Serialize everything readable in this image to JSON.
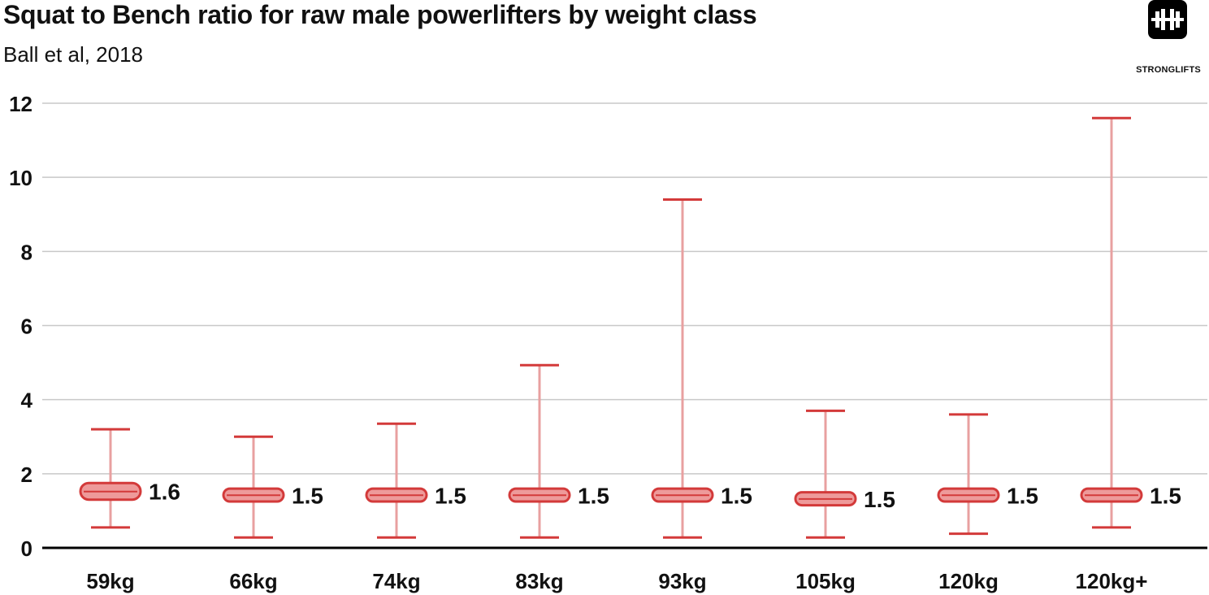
{
  "header": {
    "title": "Squat to Bench ratio for raw male powerlifters by weight class",
    "subtitle": "Ball et al, 2018"
  },
  "brand": {
    "name": "STRONGLIFTS",
    "icon": "barbell-icon"
  },
  "colors": {
    "whisker": "#e8a0a0",
    "cap": "#d33a3a",
    "box_fill": "#ee9a9a",
    "box_stroke": "#d33a3a",
    "grid": "#c8c8c8",
    "axis": "#000000"
  },
  "chart_data": {
    "type": "boxplot",
    "title": "Squat to Bench ratio for raw male powerlifters by weight class",
    "subtitle": "Ball et al, 2018",
    "xlabel": "",
    "ylabel": "",
    "ylim": [
      0,
      12
    ],
    "yticks": [
      0,
      2,
      4,
      6,
      8,
      10,
      12
    ],
    "grid": true,
    "categories": [
      "59kg",
      "66kg",
      "74kg",
      "83kg",
      "93kg",
      "105kg",
      "120kg",
      "120kg+"
    ],
    "min": [
      0.55,
      0.28,
      0.28,
      0.28,
      0.28,
      0.28,
      0.38,
      0.55
    ],
    "max": [
      3.2,
      3.0,
      3.35,
      4.93,
      9.4,
      3.7,
      3.6,
      11.6
    ],
    "q1": [
      1.3,
      1.25,
      1.25,
      1.25,
      1.25,
      1.15,
      1.25,
      1.25
    ],
    "q3": [
      1.75,
      1.6,
      1.6,
      1.6,
      1.6,
      1.5,
      1.6,
      1.6
    ],
    "median": [
      1.52,
      1.42,
      1.42,
      1.42,
      1.42,
      1.32,
      1.42,
      1.42
    ],
    "labels": [
      "1.6",
      "1.5",
      "1.5",
      "1.5",
      "1.5",
      "1.5",
      "1.5",
      "1.5"
    ]
  }
}
